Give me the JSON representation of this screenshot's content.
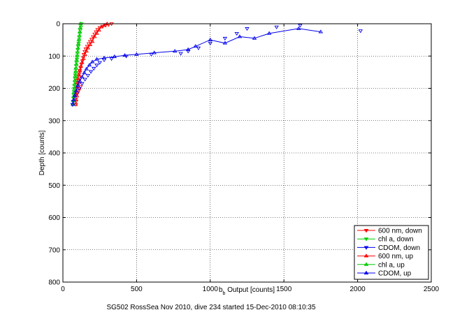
{
  "chart_data": {
    "type": "scatter",
    "xlabel_main": "b",
    "xlabel_sub": "b",
    "xlabel_rest": " Output [counts]",
    "ylabel": "Depth [counts]",
    "caption": "SG502 RossSea Nov 2010, dive 234 started 15-Dec-2010 08:10:35",
    "xlim": [
      0,
      2500
    ],
    "ylim": [
      0,
      800
    ],
    "y_reversed": true,
    "grid": true,
    "legend_placement": "bottom-right",
    "x_ticks": [
      "0",
      "500",
      "1000",
      "1500",
      "2000",
      "2500"
    ],
    "y_ticks": [
      "0",
      "100",
      "200",
      "300",
      "400",
      "500",
      "600",
      "700",
      "800"
    ],
    "series": [
      {
        "name": "600 nm, down",
        "color": "#ff0000",
        "marker": "triangle-down",
        "line": false,
        "points": [
          [
            330,
            0
          ],
          [
            310,
            3
          ],
          [
            290,
            5
          ],
          [
            270,
            8
          ],
          [
            250,
            12
          ],
          [
            235,
            18
          ],
          [
            225,
            25
          ],
          [
            215,
            32
          ],
          [
            205,
            40
          ],
          [
            195,
            48
          ],
          [
            185,
            55
          ],
          [
            175,
            62
          ],
          [
            165,
            70
          ],
          [
            155,
            78
          ],
          [
            148,
            86
          ],
          [
            142,
            95
          ],
          [
            138,
            105
          ],
          [
            132,
            115
          ],
          [
            126,
            125
          ],
          [
            120,
            135
          ],
          [
            115,
            145
          ],
          [
            112,
            155
          ],
          [
            110,
            165
          ],
          [
            108,
            175
          ],
          [
            110,
            185
          ],
          [
            120,
            195
          ],
          [
            110,
            205
          ],
          [
            100,
            215
          ],
          [
            95,
            228
          ],
          [
            90,
            240
          ],
          [
            88,
            250
          ]
        ]
      },
      {
        "name": "chl a, down",
        "color": "#00cc00",
        "marker": "triangle-down",
        "line": false,
        "points": [
          [
            125,
            0
          ],
          [
            122,
            10
          ],
          [
            118,
            20
          ],
          [
            115,
            30
          ],
          [
            112,
            40
          ],
          [
            110,
            50
          ],
          [
            107,
            60
          ],
          [
            104,
            70
          ],
          [
            101,
            80
          ],
          [
            99,
            90
          ],
          [
            97,
            100
          ],
          [
            95,
            110
          ],
          [
            93,
            120
          ],
          [
            91,
            130
          ],
          [
            89,
            140
          ],
          [
            87,
            150
          ],
          [
            85,
            160
          ],
          [
            83,
            170
          ],
          [
            81,
            180
          ],
          [
            79,
            190
          ],
          [
            77,
            200
          ],
          [
            75,
            210
          ],
          [
            73,
            220
          ],
          [
            71,
            230
          ],
          [
            69,
            240
          ],
          [
            68,
            250
          ]
        ]
      },
      {
        "name": "CDOM, down",
        "color": "#0000ee",
        "marker": "triangle-down",
        "line": false,
        "points": [
          [
            2020,
            22
          ],
          [
            1610,
            5
          ],
          [
            1450,
            10
          ],
          [
            1250,
            15
          ],
          [
            1180,
            30
          ],
          [
            1100,
            45
          ],
          [
            1000,
            60
          ],
          [
            920,
            75
          ],
          [
            850,
            85
          ],
          [
            800,
            92
          ],
          [
            600,
            95
          ],
          [
            430,
            100
          ],
          [
            330,
            108
          ],
          [
            280,
            112
          ],
          [
            250,
            120
          ],
          [
            230,
            128
          ],
          [
            210,
            138
          ],
          [
            190,
            148
          ],
          [
            170,
            160
          ],
          [
            150,
            172
          ],
          [
            130,
            185
          ],
          [
            110,
            200
          ],
          [
            95,
            215
          ],
          [
            80,
            230
          ],
          [
            70,
            242
          ],
          [
            65,
            250
          ]
        ]
      },
      {
        "name": "600 nm, up",
        "color": "#ff0000",
        "marker": "triangle-up",
        "line": true,
        "points": [
          [
            300,
            0
          ],
          [
            280,
            5
          ],
          [
            260,
            10
          ],
          [
            245,
            20
          ],
          [
            230,
            30
          ],
          [
            215,
            40
          ],
          [
            200,
            55
          ],
          [
            185,
            65
          ],
          [
            170,
            75
          ],
          [
            160,
            85
          ],
          [
            150,
            95
          ],
          [
            140,
            108
          ],
          [
            130,
            120
          ],
          [
            122,
            132
          ],
          [
            115,
            145
          ],
          [
            108,
            158
          ],
          [
            102,
            170
          ],
          [
            98,
            182
          ],
          [
            95,
            195
          ],
          [
            92,
            208
          ],
          [
            90,
            220
          ],
          [
            88,
            235
          ],
          [
            86,
            250
          ]
        ]
      },
      {
        "name": "chl a, up",
        "color": "#00cc00",
        "marker": "triangle-up",
        "line": true,
        "points": [
          [
            120,
            0
          ],
          [
            117,
            12
          ],
          [
            114,
            25
          ],
          [
            111,
            38
          ],
          [
            108,
            50
          ],
          [
            105,
            62
          ],
          [
            102,
            75
          ],
          [
            99,
            88
          ],
          [
            96,
            100
          ],
          [
            93,
            112
          ],
          [
            90,
            125
          ],
          [
            87,
            138
          ],
          [
            85,
            150
          ],
          [
            83,
            162
          ],
          [
            81,
            175
          ],
          [
            79,
            188
          ],
          [
            77,
            200
          ],
          [
            75,
            212
          ],
          [
            73,
            225
          ],
          [
            71,
            238
          ],
          [
            70,
            250
          ]
        ]
      },
      {
        "name": "CDOM, up",
        "color": "#0000ee",
        "marker": "triangle-up",
        "line": true,
        "points": [
          [
            1750,
            25
          ],
          [
            1600,
            15
          ],
          [
            1400,
            30
          ],
          [
            1300,
            45
          ],
          [
            1200,
            40
          ],
          [
            1100,
            60
          ],
          [
            1000,
            50
          ],
          [
            900,
            70
          ],
          [
            850,
            80
          ],
          [
            760,
            85
          ],
          [
            620,
            90
          ],
          [
            500,
            95
          ],
          [
            420,
            98
          ],
          [
            350,
            102
          ],
          [
            280,
            106
          ],
          [
            230,
            110
          ],
          [
            200,
            118
          ],
          [
            180,
            128
          ],
          [
            160,
            140
          ],
          [
            145,
            152
          ],
          [
            130,
            165
          ],
          [
            115,
            178
          ],
          [
            100,
            192
          ],
          [
            90,
            208
          ],
          [
            80,
            222
          ],
          [
            72,
            236
          ],
          [
            68,
            250
          ]
        ]
      }
    ]
  }
}
